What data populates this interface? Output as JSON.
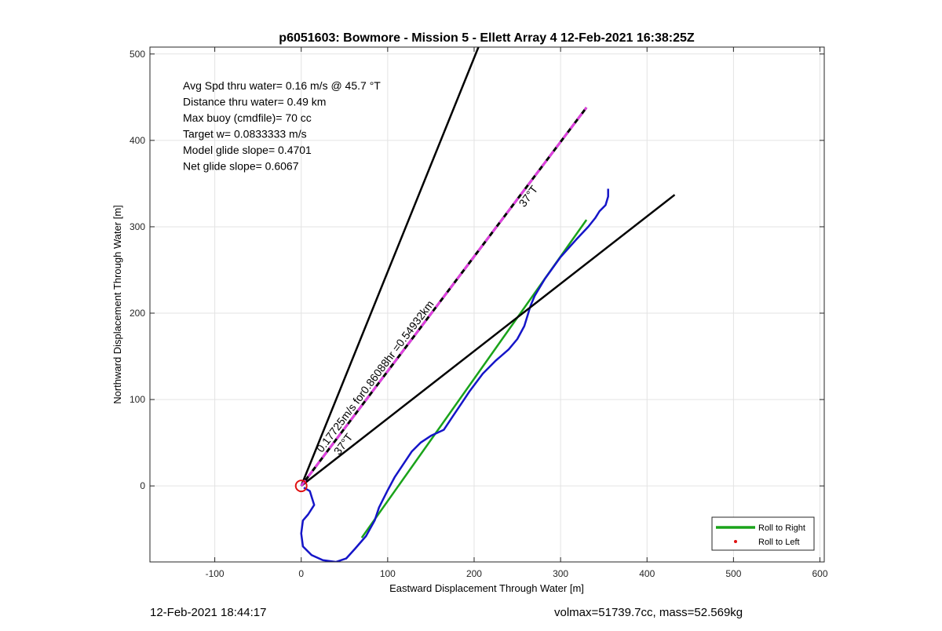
{
  "chart_data": {
    "type": "line",
    "title": "p6051603: Bowmore - Mission 5 - Ellett Array 4 12-Feb-2021 16:38:25Z",
    "xlabel": "Eastward Displacement Through Water [m]",
    "ylabel": "Northward Displacement Through Water [m]",
    "xlim": [
      -175,
      605
    ],
    "ylim": [
      -88,
      508
    ],
    "xticks": [
      -100,
      0,
      100,
      200,
      300,
      400,
      500,
      600
    ],
    "yticks": [
      0,
      100,
      200,
      300,
      400,
      500
    ],
    "grid": true,
    "info_lines": [
      "Avg Spd thru water=  0.16 m/s @  45.7 °T",
      "Distance thru water=  0.49 km",
      "Max buoy (cmdfile)= 70 cc",
      "Target w= 0.0833333 m/s",
      "Model glide slope= 0.4701",
      "Net glide slope= 0.6067"
    ],
    "series": [
      {
        "name": "Roll to Right",
        "color": "#1aa31a",
        "points": [
          [
            70,
            -60
          ],
          [
            330,
            308
          ]
        ]
      },
      {
        "name": "Roll to Left",
        "color": "#e01010",
        "points": []
      },
      {
        "color": "#1515c8",
        "points": [
          [
            3,
            -2
          ],
          [
            10,
            -6
          ],
          [
            15,
            -22
          ],
          [
            8,
            -33
          ],
          [
            2,
            -40
          ],
          [
            0,
            -55
          ],
          [
            2,
            -70
          ],
          [
            12,
            -80
          ],
          [
            25,
            -86
          ],
          [
            40,
            -88
          ],
          [
            52,
            -84
          ],
          [
            62,
            -73
          ],
          [
            75,
            -58
          ],
          [
            85,
            -40
          ],
          [
            90,
            -25
          ],
          [
            95,
            -15
          ],
          [
            100,
            -5
          ],
          [
            108,
            10
          ],
          [
            118,
            25
          ],
          [
            128,
            40
          ],
          [
            138,
            50
          ],
          [
            150,
            58
          ],
          [
            165,
            65
          ],
          [
            175,
            80
          ],
          [
            185,
            95
          ],
          [
            195,
            110
          ],
          [
            210,
            130
          ],
          [
            225,
            145
          ],
          [
            240,
            158
          ],
          [
            250,
            170
          ],
          [
            258,
            185
          ],
          [
            262,
            198
          ],
          [
            265,
            208
          ],
          [
            270,
            220
          ],
          [
            282,
            240
          ],
          [
            300,
            265
          ],
          [
            318,
            285
          ],
          [
            332,
            300
          ],
          [
            340,
            310
          ],
          [
            345,
            318
          ],
          [
            352,
            325
          ],
          [
            355,
            335
          ],
          [
            355,
            344
          ]
        ]
      },
      {
        "color": "#000000",
        "points": [
          [
            0,
            0
          ],
          [
            205,
            508
          ]
        ]
      },
      {
        "color": "#000000",
        "points": [
          [
            0,
            0
          ],
          [
            432,
            337
          ]
        ]
      },
      {
        "color": "#000000",
        "points": [
          [
            0,
            0
          ],
          [
            330,
            438
          ]
        ]
      }
    ],
    "annotations": [
      {
        "text": "0.17725m/s for0.86088hr =0.54932km",
        "x": 24,
        "y": 38,
        "angle": 53
      },
      {
        "text": "37°T",
        "x": 44,
        "y": 35,
        "angle": 53
      },
      {
        "text": "37°T",
        "x": 258,
        "y": 322,
        "angle": 53
      }
    ],
    "legend": {
      "position": "bottom-right",
      "items": [
        {
          "label": "Roll to Right",
          "color": "#1aa31a",
          "kind": "line"
        },
        {
          "label": "Roll to Left",
          "color": "#e01010",
          "kind": "dot"
        }
      ]
    }
  },
  "footer": {
    "left": "12-Feb-2021 18:44:17",
    "right": "volmax=51739.7cc, mass=52.569kg"
  }
}
